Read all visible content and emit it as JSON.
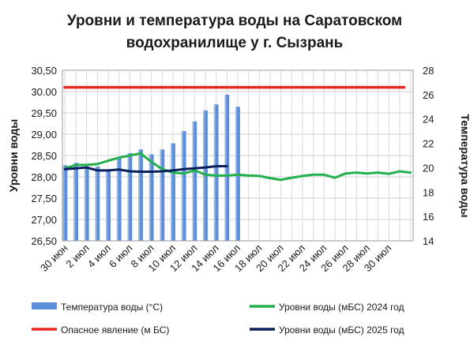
{
  "chart_data": {
    "type": "bar",
    "title_lines": [
      "Уровни и температура  воды на Саратовском",
      "водохранилище у  г. Сызрань"
    ],
    "ylabel": "Уровни воды",
    "y2label": "Температура воды",
    "ylim": [
      26.5,
      30.5
    ],
    "yticks": [
      "30,50",
      "30.00",
      "29,50",
      "29,00",
      "28,50",
      "28,00",
      "27,50",
      "27,00",
      "26,50"
    ],
    "y2lim": [
      14,
      28
    ],
    "y2ticks": [
      "28",
      "26",
      "24",
      "22",
      "20",
      "18",
      "16",
      "14"
    ],
    "xticks": [
      "30 июн",
      "2 июл",
      "4 июл",
      "6 июл",
      "8 июл",
      "10 июл",
      "12 июл",
      "14 июл",
      "16 июл",
      "18 июл",
      "20 июл",
      "22 июл",
      "24 июл",
      "26 июл",
      "28 июл",
      "30 июл"
    ],
    "x_days": [
      0,
      1,
      2,
      3,
      4,
      5,
      6,
      7,
      8,
      9,
      10,
      11,
      12,
      13,
      14,
      15,
      16,
      17,
      18,
      19,
      20,
      21,
      22,
      23,
      24,
      25,
      26,
      27,
      28,
      29,
      30,
      31,
      32
    ],
    "series": [
      {
        "name": "Температура воды (°С)",
        "kind": "bar",
        "axis": "right",
        "color": "#5B8DD9",
        "values": [
          20.2,
          20.4,
          20.1,
          20.1,
          19.8,
          20.8,
          21.2,
          21.5,
          21.1,
          21.5,
          22.0,
          23.0,
          23.8,
          24.7,
          25.2,
          26.0,
          25.0
        ]
      },
      {
        "name": "Уровни воды (мБС) 2024 год",
        "kind": "line",
        "axis": "left",
        "color": "#22B14C",
        "values": [
          28.2,
          28.28,
          28.28,
          28.3,
          28.38,
          28.45,
          28.5,
          28.55,
          28.35,
          28.18,
          28.1,
          28.08,
          28.15,
          28.05,
          28.03,
          28.03,
          28.05,
          28.03,
          28.02,
          27.97,
          27.93,
          27.98,
          28.02,
          28.05,
          28.05,
          27.98,
          28.08,
          28.1,
          28.08,
          28.1,
          28.07,
          28.13,
          28.1
        ]
      },
      {
        "name": "Опасное явление    (м БС)",
        "kind": "hline",
        "axis": "left",
        "color": "#E8261E",
        "value": 30.1
      },
      {
        "name": "Уровни воды (мБС) 2025 год",
        "kind": "line",
        "axis": "left",
        "color": "#0B1F5C",
        "values": [
          28.18,
          28.2,
          28.22,
          28.15,
          28.15,
          28.17,
          28.13,
          28.12,
          28.12,
          28.13,
          28.15,
          28.18,
          28.2,
          28.22,
          28.25,
          28.25
        ]
      }
    ],
    "legend_layout": "bottom, two columns",
    "grid": true
  }
}
